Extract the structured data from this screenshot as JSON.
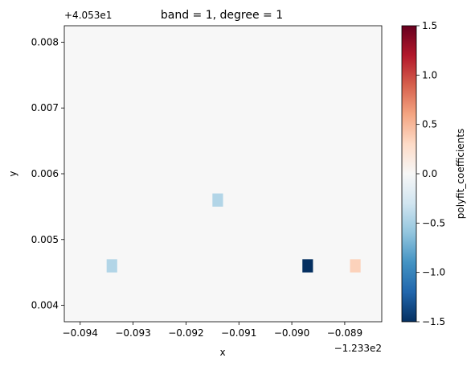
{
  "chart_data": {
    "type": "heatmap",
    "title": "band = 1, degree = 1",
    "xlabel": "x",
    "ylabel": "y",
    "x_offset_label": "−1.233e2",
    "y_offset_label": "+4.053e1",
    "xlim": [
      -0.0943,
      -0.0883
    ],
    "ylim": [
      0.00375,
      0.00825
    ],
    "x_ticks": [
      -0.094,
      -0.093,
      -0.092,
      -0.091,
      -0.09,
      -0.089
    ],
    "x_tick_labels": [
      "−0.094",
      "−0.093",
      "−0.092",
      "−0.091",
      "−0.090",
      "−0.089"
    ],
    "y_ticks": [
      0.004,
      0.005,
      0.006,
      0.007,
      0.008
    ],
    "y_tick_labels": [
      "0.004",
      "0.005",
      "0.006",
      "0.007",
      "0.008"
    ],
    "background_value": 0.0,
    "cell_width": 0.0002,
    "cell_height": 0.0002,
    "cells": [
      {
        "x": -0.0934,
        "y": 0.0046,
        "value": -0.45
      },
      {
        "x": -0.0914,
        "y": 0.0056,
        "value": -0.45
      },
      {
        "x": -0.0897,
        "y": 0.0046,
        "value": -1.5
      },
      {
        "x": -0.0888,
        "y": 0.0046,
        "value": 0.35
      }
    ],
    "colorbar": {
      "label": "polyfit_coefficients",
      "colormap": "RdBu_r",
      "vmin": -1.5,
      "vmax": 1.5,
      "ticks": [
        -1.5,
        -1.0,
        -0.5,
        0.0,
        0.5,
        1.0,
        1.5
      ],
      "tick_labels": [
        "−1.5",
        "−1.0",
        "−0.5",
        "0.0",
        "0.5",
        "1.0",
        "1.5"
      ]
    },
    "grid": false
  }
}
